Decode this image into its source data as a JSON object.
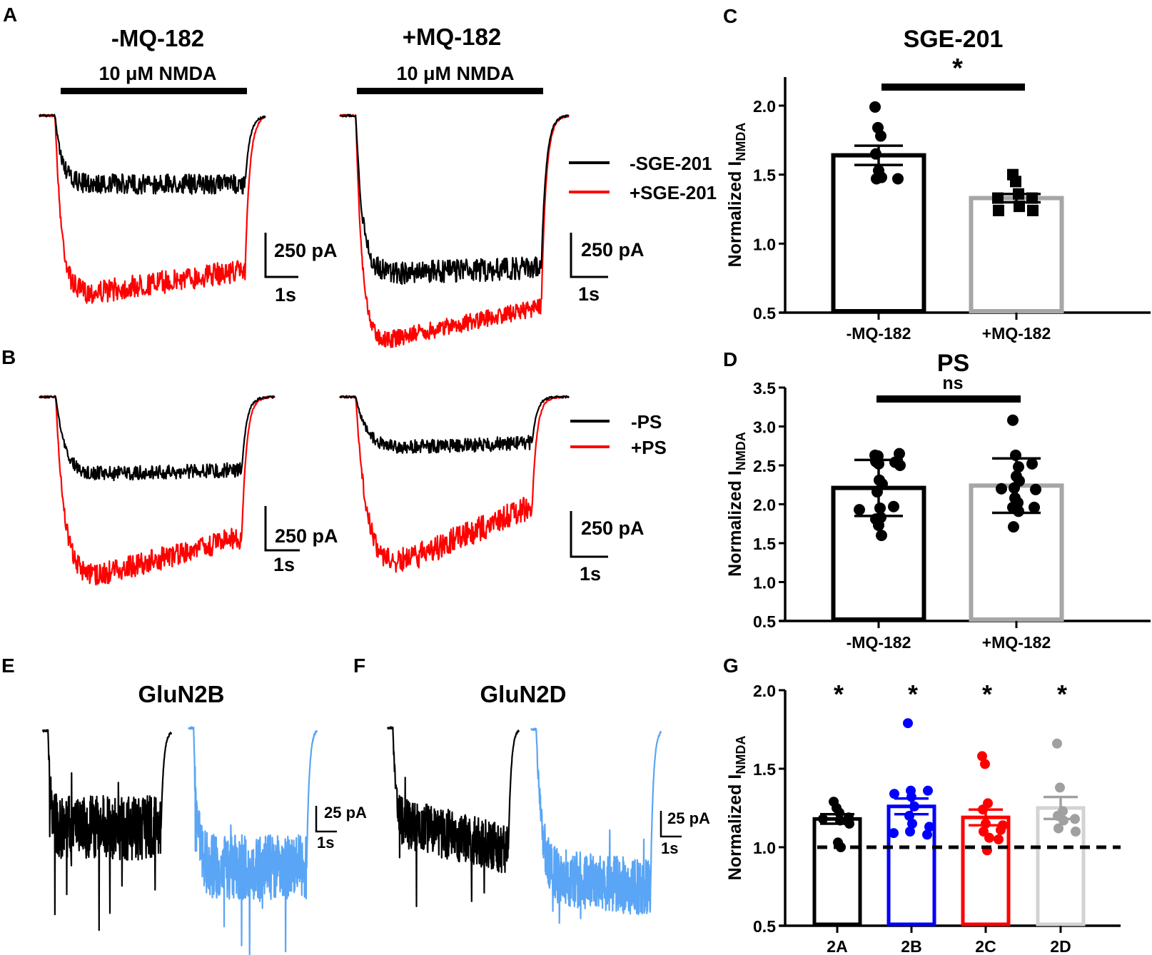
{
  "panel_letters": {
    "A": "A",
    "B": "B",
    "C": "C",
    "D": "D",
    "E": "E",
    "F": "F",
    "G": "G"
  },
  "panel_A": {
    "left_title": "-MQ-182",
    "right_title": "+MQ-182",
    "left_agonist": "10 μM NMDA",
    "right_agonist": "10 μM NMDA",
    "legend": [
      {
        "label": "-SGE-201",
        "color": "#000000"
      },
      {
        "label": "+SGE-201",
        "color": "#ff0000"
      }
    ],
    "scale_current": "250 pA",
    "scale_time": "1s"
  },
  "panel_B": {
    "legend": [
      {
        "label": "-PS",
        "color": "#000000"
      },
      {
        "label": "+PS",
        "color": "#ff0000"
      }
    ],
    "scale_current": "250 pA",
    "scale_time": "1s"
  },
  "panel_E": {
    "title": "GluN2B",
    "scale_current": "25 pA",
    "scale_time": "1s",
    "colors": [
      "#000000",
      "#5aa5f5"
    ]
  },
  "panel_F": {
    "title": "GluN2D",
    "scale_current": "25 pA",
    "scale_time": "1s",
    "colors": [
      "#000000",
      "#5aa5f5"
    ]
  },
  "chart_data": [
    {
      "id": "C",
      "type": "bar",
      "title": "SGE-201",
      "ylabel": "Normalized I",
      "ylabel_sub": "NMDA",
      "categories": [
        "-MQ-182",
        "+MQ-182"
      ],
      "ylim": [
        0.5,
        2.2
      ],
      "yticks": [
        "0.5",
        "1.0",
        "1.5",
        "2.0"
      ],
      "series": [
        {
          "name": "-MQ-182",
          "mean": 1.64,
          "err": 0.07,
          "color": "#000000",
          "marker": "circle",
          "points": [
            1.99,
            1.84,
            1.78,
            1.65,
            1.53,
            1.48,
            1.47,
            1.47
          ]
        },
        {
          "name": "+MQ-182",
          "mean": 1.33,
          "err": 0.03,
          "color": "#a6a6a6",
          "marker": "square",
          "points": [
            1.5,
            1.45,
            1.36,
            1.33,
            1.33,
            1.27,
            1.24,
            1.24
          ]
        }
      ],
      "significance": "*"
    },
    {
      "id": "D",
      "type": "bar",
      "title": "PS",
      "ylabel": "Normalized I",
      "ylabel_sub": "NMDA",
      "categories": [
        "-MQ-182",
        "+MQ-182"
      ],
      "ylim": [
        0.5,
        3.5
      ],
      "yticks": [
        "0.5",
        "1.0",
        "1.5",
        "2.0",
        "2.5",
        "3.0",
        "3.5"
      ],
      "series": [
        {
          "name": "-MQ-182",
          "mean": 2.21,
          "err": 0.36,
          "color": "#000000",
          "marker": "circle",
          "points": [
            2.63,
            2.62,
            2.65,
            2.55,
            2.52,
            2.5,
            2.54,
            2.31,
            2.26,
            2.16,
            1.95,
            1.97,
            1.93,
            1.83,
            1.81,
            1.73,
            1.6
          ]
        },
        {
          "name": "+MQ-182",
          "mean": 2.24,
          "err": 0.35,
          "color": "#a6a6a6",
          "marker": "circle",
          "points": [
            3.08,
            2.63,
            2.48,
            2.52,
            2.36,
            2.3,
            2.21,
            2.19,
            2.2,
            2.08,
            2.02,
            1.96,
            1.96,
            1.91,
            1.71
          ]
        }
      ],
      "significance": "ns"
    },
    {
      "id": "G",
      "type": "bar",
      "title": "",
      "ylabel": "Normalized I",
      "ylabel_sub": "NMDA",
      "categories": [
        "2A",
        "2B",
        "2C",
        "2D"
      ],
      "ylim": [
        0.5,
        2.0
      ],
      "yticks": [
        "0.5",
        "1.0",
        "1.5",
        "2.0"
      ],
      "reference_line": 1.0,
      "series": [
        {
          "name": "2A",
          "mean": 1.18,
          "err": 0.03,
          "color": "#000000",
          "point_color": "#000000",
          "significance": "*",
          "points": [
            1.29,
            1.25,
            1.22,
            1.19,
            1.18,
            1.17,
            1.15,
            1.03,
            1.0
          ]
        },
        {
          "name": "2B",
          "mean": 1.26,
          "err": 0.05,
          "color": "#0000ff",
          "point_color": "#0000ff",
          "significance": "*",
          "points": [
            1.79,
            1.36,
            1.36,
            1.34,
            1.32,
            1.26,
            1.2,
            1.15,
            1.13,
            1.1,
            1.08,
            1.09
          ]
        },
        {
          "name": "2C",
          "mean": 1.19,
          "err": 0.05,
          "color": "#ff0000",
          "point_color": "#ff0000",
          "significance": "*",
          "points": [
            1.58,
            1.53,
            1.28,
            1.24,
            1.15,
            1.14,
            1.1,
            1.11,
            1.06,
            1.05,
            0.98
          ]
        },
        {
          "name": "2D",
          "mean": 1.25,
          "err": 0.07,
          "color": "#d3d3d3",
          "point_color": "#a0a0a0",
          "significance": "*",
          "points": [
            1.66,
            1.38,
            1.23,
            1.2,
            1.18,
            1.17,
            1.12,
            1.1
          ]
        }
      ]
    }
  ]
}
